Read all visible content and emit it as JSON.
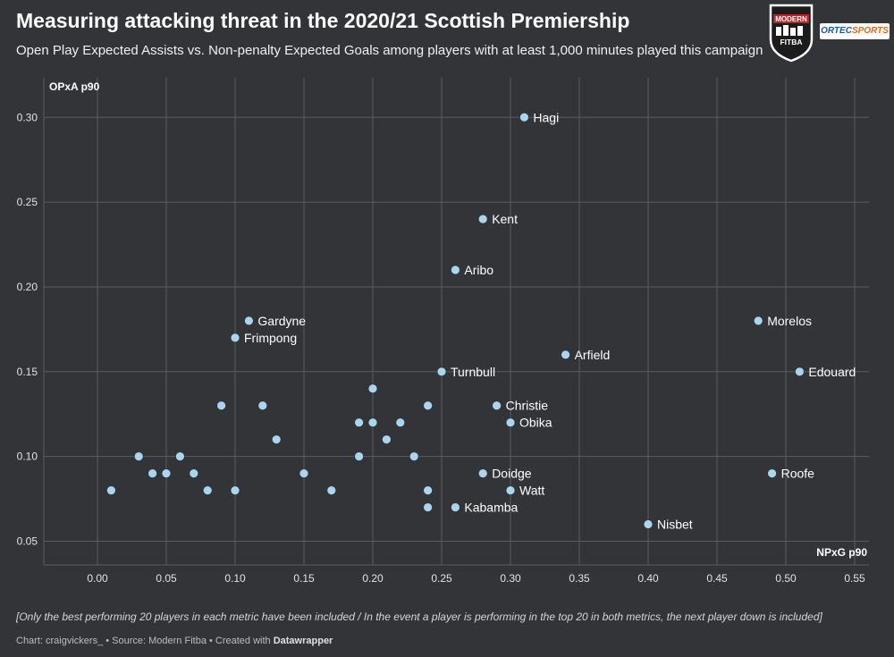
{
  "title": "Measuring attacking threat in the 2020/21 Scottish Premiership",
  "subtitle": "Open Play Expected Assists vs. Non-penalty Expected Goals among players with at least 1,000 minutes played this campaign",
  "footnote": "[Only the best performing 20 players in each metric have been included / In the event a player is performing in the top 20 in both metrics, the next player down is included]",
  "credit": {
    "prefix": "Chart: craigvickers_ • Source: Modern Fitba • Created with ",
    "tool": "Datawrapper"
  },
  "logos": {
    "badge_top": "MODERN",
    "badge_bottom": "FITBA",
    "sponsor_part1": "ORTEC",
    "sponsor_part2": "SPORTS"
  },
  "colors": {
    "background": "#333438",
    "grid": "#5b5c61",
    "point": "#a9d5f0",
    "text": "#ffffff",
    "badge_red": "#b5282f"
  },
  "chart_data": {
    "type": "scatter",
    "xlabel": "NPxG p90",
    "ylabel": "OPxA p90",
    "xlim": [
      -0.04,
      0.55
    ],
    "ylim": [
      0.04,
      0.31
    ],
    "xticks": [
      "0.00",
      "0.05",
      "0.10",
      "0.15",
      "0.20",
      "0.25",
      "0.30",
      "0.35",
      "0.40",
      "0.45",
      "0.50",
      "0.55"
    ],
    "yticks": [
      "0.05",
      "0.10",
      "0.15",
      "0.20",
      "0.25",
      "0.30"
    ],
    "grid": true,
    "points": [
      {
        "label": "Hagi",
        "x": 0.31,
        "y": 0.3
      },
      {
        "label": "Kent",
        "x": 0.28,
        "y": 0.24
      },
      {
        "label": "Aribo",
        "x": 0.26,
        "y": 0.21
      },
      {
        "label": "Gardyne",
        "x": 0.11,
        "y": 0.18
      },
      {
        "label": "Frimpong",
        "x": 0.1,
        "y": 0.17
      },
      {
        "label": "Morelos",
        "x": 0.48,
        "y": 0.18
      },
      {
        "label": "Arfield",
        "x": 0.34,
        "y": 0.16
      },
      {
        "label": "Edouard",
        "x": 0.51,
        "y": 0.15
      },
      {
        "label": "Turnbull",
        "x": 0.25,
        "y": 0.15
      },
      {
        "label": "Christie",
        "x": 0.29,
        "y": 0.13
      },
      {
        "label": "Obika",
        "x": 0.3,
        "y": 0.12
      },
      {
        "label": "Doidge",
        "x": 0.28,
        "y": 0.09
      },
      {
        "label": "Roofe",
        "x": 0.49,
        "y": 0.09
      },
      {
        "label": "Watt",
        "x": 0.3,
        "y": 0.08
      },
      {
        "label": "Kabamba",
        "x": 0.26,
        "y": 0.07
      },
      {
        "label": "Nisbet",
        "x": 0.4,
        "y": 0.06
      },
      {
        "label": "",
        "x": 0.01,
        "y": 0.08
      },
      {
        "label": "",
        "x": 0.03,
        "y": 0.1
      },
      {
        "label": "",
        "x": 0.04,
        "y": 0.09
      },
      {
        "label": "",
        "x": 0.05,
        "y": 0.09
      },
      {
        "label": "",
        "x": 0.06,
        "y": 0.1
      },
      {
        "label": "",
        "x": 0.07,
        "y": 0.09
      },
      {
        "label": "",
        "x": 0.08,
        "y": 0.08
      },
      {
        "label": "",
        "x": 0.09,
        "y": 0.13
      },
      {
        "label": "",
        "x": 0.1,
        "y": 0.08
      },
      {
        "label": "",
        "x": 0.12,
        "y": 0.13
      },
      {
        "label": "",
        "x": 0.13,
        "y": 0.11
      },
      {
        "label": "",
        "x": 0.15,
        "y": 0.09
      },
      {
        "label": "",
        "x": 0.17,
        "y": 0.08
      },
      {
        "label": "",
        "x": 0.19,
        "y": 0.12
      },
      {
        "label": "",
        "x": 0.19,
        "y": 0.1
      },
      {
        "label": "",
        "x": 0.2,
        "y": 0.14
      },
      {
        "label": "",
        "x": 0.2,
        "y": 0.12
      },
      {
        "label": "",
        "x": 0.21,
        "y": 0.11
      },
      {
        "label": "",
        "x": 0.22,
        "y": 0.12
      },
      {
        "label": "",
        "x": 0.23,
        "y": 0.1
      },
      {
        "label": "",
        "x": 0.24,
        "y": 0.13
      },
      {
        "label": "",
        "x": 0.24,
        "y": 0.08
      },
      {
        "label": "",
        "x": 0.24,
        "y": 0.07
      }
    ]
  }
}
